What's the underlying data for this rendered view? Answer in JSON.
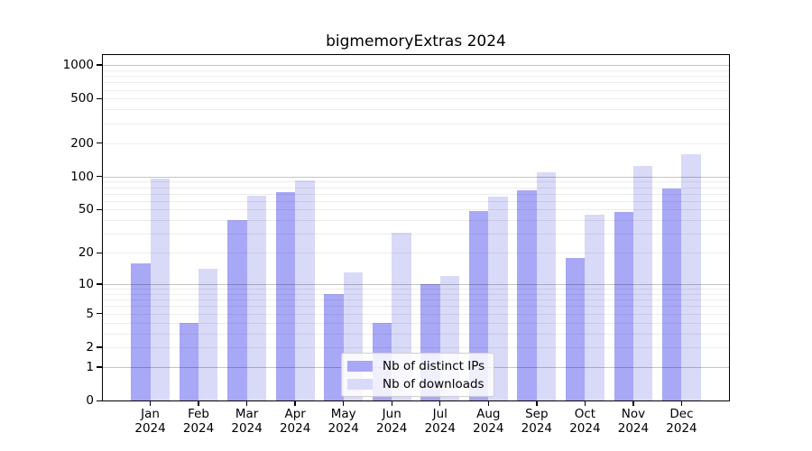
{
  "chart_data": {
    "type": "bar",
    "title": "bigmemoryExtras 2024",
    "categories": [
      "Jan",
      "Feb",
      "Mar",
      "Apr",
      "May",
      "Jun",
      "Jul",
      "Aug",
      "Sep",
      "Oct",
      "Nov",
      "Dec"
    ],
    "x_tick_year": "2024",
    "series": [
      {
        "name": "Nb of distinct IPs",
        "color": "#a8a8f6",
        "values": [
          16,
          4,
          40,
          72,
          8,
          4,
          10,
          49,
          75,
          18,
          48,
          78
        ]
      },
      {
        "name": "Nb of downloads",
        "color": "#d9d9f8",
        "values": [
          95,
          14,
          67,
          93,
          13,
          31,
          12,
          66,
          110,
          45,
          124,
          160
        ]
      }
    ],
    "y_ticks": [
      0,
      1,
      2,
      5,
      10,
      20,
      50,
      100,
      200,
      500,
      1000
    ],
    "y_scale": "log10(1+x)",
    "ylim": [
      0,
      1250
    ],
    "grid": true,
    "legend_position": "lower center",
    "xlabel": "",
    "ylabel": ""
  }
}
